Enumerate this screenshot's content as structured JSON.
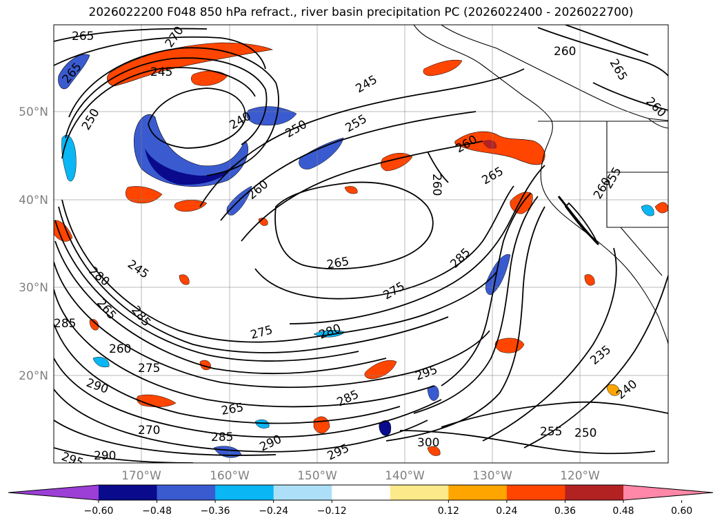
{
  "title": "2026022200 F048 850 hPa refract., river basin precipitation PC (2026022400 - 2026022700)",
  "axes": {
    "lat_labels": [
      "50°N",
      "40°N",
      "30°N",
      "20°N"
    ],
    "lon_labels": [
      "170°W",
      "160°W",
      "150°W",
      "140°W",
      "130°W",
      "120°W"
    ]
  },
  "colorbar": {
    "ticks": [
      "−0.60",
      "−0.48",
      "−0.36",
      "−0.24",
      "−0.12",
      "0.12",
      "0.24",
      "0.36",
      "0.48",
      "0.60"
    ],
    "colors": [
      "#9b3fd6",
      "#0a0a8c",
      "#3a5bd0",
      "#0ab6f4",
      "#ade0f8",
      "#ffffff",
      "#fce98a",
      "#ffa500",
      "#ff4500",
      "#b22222",
      "#ff88a8"
    ]
  },
  "contour_labels": [
    "265",
    "270",
    "265",
    "245",
    "240",
    "250",
    "250",
    "245",
    "255",
    "260",
    "260",
    "265",
    "260",
    "265",
    "260",
    "260",
    "265",
    "255",
    "260",
    "280",
    "245",
    "285",
    "265",
    "285",
    "275",
    "280",
    "275",
    "260",
    "285",
    "295",
    "275",
    "290",
    "265",
    "285",
    "290",
    "295",
    "270",
    "285",
    "290",
    "295",
    "300",
    "255",
    "250",
    "235",
    "240"
  ],
  "basemap": "North Pacific Ocean, Alaska, Pacific Northwest and California coastline"
}
